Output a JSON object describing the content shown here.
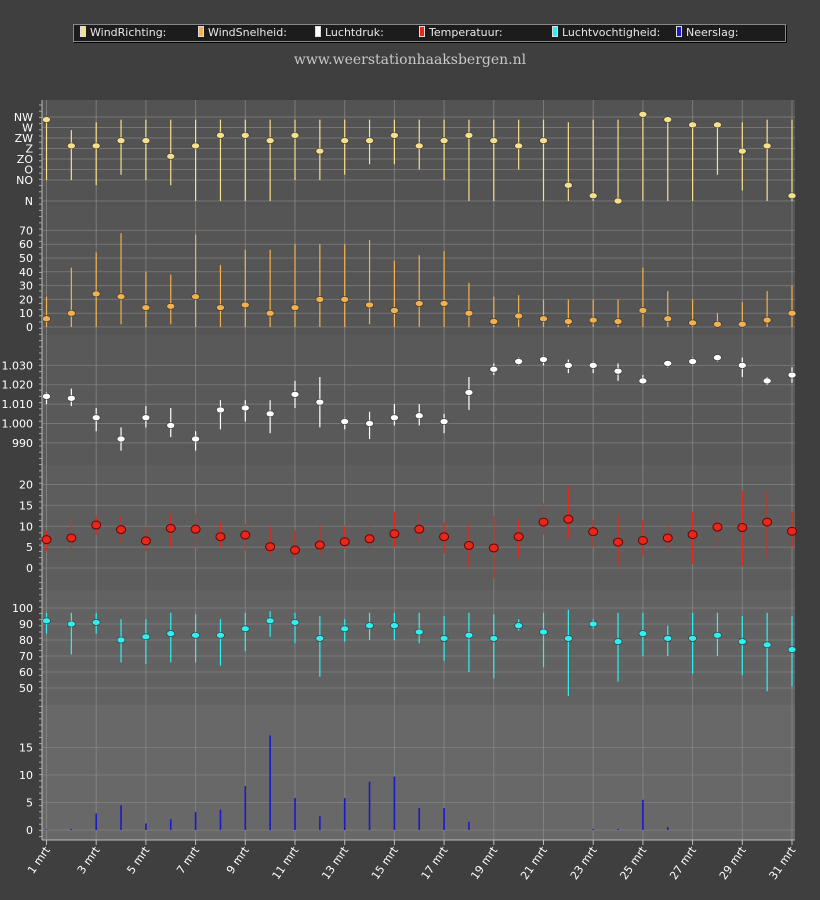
{
  "legend": [
    {
      "label": "WindRichting:",
      "color": "#f6e08c"
    },
    {
      "label": "WindSnelheid:",
      "color": "#f2b14e"
    },
    {
      "label": "Luchtdruk:",
      "color": "#ffffff"
    },
    {
      "label": "Temperatuur:",
      "color": "#e8271a"
    },
    {
      "label": "Luchtvochtigheid:",
      "color": "#2ff0f0"
    },
    {
      "label": "Neerslag:",
      "color": "#1a1acc"
    }
  ],
  "site_title": "www.weerstationhaaksbergen.nl",
  "x_labels": [
    "1 mrt",
    "3 mrt",
    "5 mrt",
    "7 mrt",
    "9 mrt",
    "11 mrt",
    "13 mrt",
    "15 mrt",
    "17 mrt",
    "19 mrt",
    "21 mrt",
    "23 mrt",
    "25 mrt",
    "27 mrt",
    "29 mrt",
    "31 mrt"
  ],
  "chart_data": [
    {
      "type": "scatter",
      "name": "WindRichting",
      "color": "#f6e08c",
      "y_ticks": [
        "NW",
        "W",
        "ZW",
        "Z",
        "ZO",
        "O",
        "NO",
        "N"
      ],
      "days": [
        1,
        2,
        3,
        4,
        5,
        6,
        7,
        8,
        9,
        10,
        11,
        12,
        13,
        14,
        15,
        16,
        17,
        18,
        19,
        20,
        21,
        22,
        23,
        24,
        25,
        26,
        27,
        28,
        29,
        30,
        31
      ],
      "values": [
        7.75,
        5.25,
        5.25,
        5.75,
        5.75,
        4.25,
        5.25,
        6.25,
        6.25,
        5.75,
        6.25,
        4.75,
        5.75,
        5.75,
        6.25,
        5.25,
        5.75,
        6.25,
        5.75,
        5.25,
        5.75,
        1.5,
        0.5,
        0,
        8.25,
        7.75,
        7.25,
        7.25,
        4.75,
        5.25,
        0.5
      ],
      "low": [
        2.0,
        2.0,
        1.5,
        2.5,
        2.0,
        1.5,
        0,
        0,
        0,
        0,
        2.0,
        2.0,
        2.5,
        3.5,
        3.5,
        3.0,
        2.0,
        0,
        0,
        3.0,
        0,
        0,
        0,
        0,
        0,
        0,
        0,
        2.5,
        1.0,
        0,
        0
      ],
      "high": [
        7.75,
        6.75,
        7.5,
        7.75,
        7.75,
        7.75,
        7.75,
        7.75,
        7.75,
        7.75,
        7.75,
        7.75,
        7.75,
        7.75,
        7.75,
        7.75,
        7.75,
        7.75,
        7.75,
        7.75,
        7.75,
        7.5,
        7.75,
        7.75,
        8.25,
        7.75,
        7.5,
        7.5,
        7.5,
        7.75,
        7.75
      ]
    },
    {
      "type": "scatter",
      "name": "WindSnelheid",
      "color": "#f2b14e",
      "y_ticks": [
        "0",
        "10",
        "20",
        "30",
        "40",
        "50",
        "60",
        "70"
      ],
      "ylim": [
        0,
        70
      ],
      "days": [
        1,
        2,
        3,
        4,
        5,
        6,
        7,
        8,
        9,
        10,
        11,
        12,
        13,
        14,
        15,
        16,
        17,
        18,
        19,
        20,
        21,
        22,
        23,
        24,
        25,
        26,
        27,
        28,
        29,
        30,
        31
      ],
      "values": [
        6,
        10,
        24,
        22,
        14,
        15,
        22,
        14,
        16,
        10,
        14,
        20,
        20,
        16,
        12,
        17,
        17,
        10,
        4,
        8,
        6,
        4,
        5,
        4,
        12,
        6,
        3,
        2,
        2,
        5,
        10
      ],
      "low": [
        0,
        0,
        0,
        2,
        0,
        2,
        0,
        0,
        0,
        0,
        0,
        0,
        0,
        2,
        0,
        0,
        0,
        0,
        0,
        0,
        0,
        0,
        0,
        0,
        0,
        0,
        0,
        0,
        0,
        0,
        0
      ],
      "high": [
        22,
        43,
        54,
        68,
        40,
        38,
        67,
        45,
        56,
        56,
        60,
        60,
        60,
        63,
        48,
        52,
        55,
        32,
        22,
        23,
        20,
        20,
        20,
        20,
        43,
        26,
        20,
        10,
        18,
        26,
        30
      ]
    },
    {
      "type": "scatter",
      "name": "Luchtdruk",
      "color": "#ffffff",
      "y_ticks": [
        "990",
        "1.000",
        "1.010",
        "1.020",
        "1.030"
      ],
      "ylim": [
        985,
        1037
      ],
      "days": [
        1,
        2,
        3,
        4,
        5,
        6,
        7,
        8,
        9,
        10,
        11,
        12,
        13,
        14,
        15,
        16,
        17,
        18,
        19,
        20,
        21,
        22,
        23,
        24,
        25,
        26,
        27,
        28,
        29,
        30,
        31
      ],
      "values": [
        1014,
        1013,
        1003,
        992,
        1003,
        999,
        992,
        1007,
        1008,
        1005,
        1015,
        1011,
        1001,
        1000,
        1003,
        1004,
        1001,
        1016,
        1028,
        1032,
        1033,
        1030,
        1030,
        1027,
        1022,
        1031,
        1032,
        1034,
        1030,
        1022,
        1025
      ],
      "low": [
        1010,
        1009,
        996,
        986,
        998,
        993,
        986,
        997,
        1001,
        995,
        1008,
        998,
        997,
        992,
        999,
        999,
        995,
        1007,
        1025,
        1030,
        1030,
        1026,
        1026,
        1022,
        1021,
        1029,
        1030,
        1032,
        1024,
        1020,
        1021
      ],
      "high": [
        1016,
        1018,
        1008,
        998,
        1009,
        1008,
        996,
        1012,
        1012,
        1012,
        1022,
        1024,
        1003,
        1006,
        1010,
        1010,
        1005,
        1024,
        1031,
        1034,
        1035,
        1033,
        1032,
        1031,
        1025,
        1032,
        1034,
        1035,
        1034,
        1024,
        1029
      ]
    },
    {
      "type": "scatter",
      "name": "Temperatuur",
      "color": "#e8271a",
      "y_ticks": [
        "0",
        "5",
        "10",
        "15",
        "20"
      ],
      "ylim": [
        -3,
        21
      ],
      "days": [
        1,
        2,
        3,
        4,
        5,
        6,
        7,
        8,
        9,
        10,
        11,
        12,
        13,
        14,
        15,
        16,
        17,
        18,
        19,
        20,
        21,
        22,
        23,
        24,
        25,
        26,
        27,
        28,
        29,
        30,
        31
      ],
      "values": [
        6.8,
        7.2,
        10.3,
        9.2,
        6.5,
        9.5,
        9.3,
        7.5,
        7.9,
        5.1,
        4.3,
        5.5,
        6.3,
        7.0,
        8.2,
        9.3,
        7.5,
        5.4,
        4.8,
        7.5,
        11.0,
        11.7,
        8.7,
        6.2,
        6.6,
        7.2,
        8.0,
        9.8,
        9.7,
        11.0,
        8.8
      ],
      "low": [
        4.0,
        4.5,
        8.0,
        6.0,
        4.0,
        5.0,
        5.0,
        5.0,
        4.0,
        3.0,
        2.5,
        3.0,
        4.5,
        4.5,
        5.0,
        6.0,
        3.5,
        0,
        -2.5,
        2.5,
        8.0,
        7.0,
        5.0,
        0.5,
        3.0,
        4.0,
        1.0,
        5.0,
        0.5,
        2.5,
        5.0
      ],
      "high": [
        9.0,
        11.5,
        12.5,
        12.5,
        10.0,
        13.0,
        13.0,
        11.0,
        10.5,
        10.0,
        9.0,
        10.5,
        10.0,
        10.5,
        13.5,
        13.0,
        11.0,
        10.5,
        12.5,
        11.5,
        15.5,
        19.5,
        11.5,
        12.5,
        11.5,
        10.5,
        13.5,
        13.5,
        18.5,
        18.5,
        13.5
      ]
    },
    {
      "type": "scatter",
      "name": "Luchtvochtigheid",
      "color": "#2ff0f0",
      "y_ticks": [
        "50",
        "60",
        "70",
        "80",
        "90",
        "100"
      ],
      "ylim": [
        34,
        101
      ],
      "days": [
        1,
        2,
        3,
        4,
        5,
        6,
        7,
        8,
        9,
        10,
        11,
        12,
        13,
        14,
        15,
        16,
        17,
        18,
        19,
        20,
        21,
        22,
        23,
        24,
        25,
        26,
        27,
        28,
        29,
        30,
        31
      ],
      "values": [
        92,
        90,
        91,
        80,
        82,
        84,
        83,
        83,
        87,
        92,
        91,
        81,
        87,
        89,
        89,
        85,
        81,
        83,
        81,
        89,
        85,
        81,
        90,
        79,
        84,
        81,
        81,
        83,
        79,
        77,
        74
      ],
      "low": [
        84,
        71,
        84,
        66,
        65,
        66,
        66,
        64,
        73,
        82,
        78,
        57,
        79,
        80,
        80,
        78,
        67,
        60,
        56,
        86,
        63,
        45,
        87,
        54,
        70,
        70,
        59,
        70,
        58,
        48,
        51
      ],
      "high": [
        97,
        97,
        97,
        93,
        93,
        97,
        96,
        93,
        97,
        98,
        97,
        95,
        93,
        97,
        97,
        97,
        95,
        97,
        96,
        93,
        97,
        99,
        93,
        97,
        97,
        89,
        97,
        97,
        95,
        97,
        95
      ]
    },
    {
      "type": "bar",
      "name": "Neerslag",
      "color": "#1a1acc",
      "y_ticks": [
        "0",
        "5",
        "10",
        "15"
      ],
      "ylim": [
        0,
        19
      ],
      "days": [
        1,
        2,
        3,
        4,
        5,
        6,
        7,
        8,
        9,
        10,
        11,
        12,
        13,
        14,
        15,
        16,
        17,
        18,
        19,
        20,
        21,
        22,
        23,
        24,
        25,
        26,
        27,
        28,
        29,
        30,
        31
      ],
      "values": [
        0.1,
        0.2,
        3.0,
        4.5,
        1.2,
        2.0,
        3.3,
        3.7,
        8.0,
        17.2,
        5.8,
        2.5,
        5.8,
        8.8,
        9.7,
        4.0,
        4.0,
        1.5,
        0,
        0,
        0,
        0,
        0.2,
        0.2,
        5.5,
        0.5,
        0,
        0,
        0,
        0,
        0
      ]
    }
  ]
}
